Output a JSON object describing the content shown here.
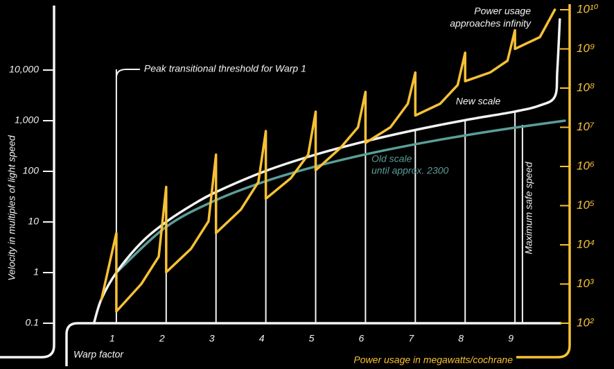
{
  "chart_data": {
    "type": "line",
    "y_label": "Velocity in multiples of light speed",
    "x_label": "Warp factor",
    "y2_label": "Power usage in megawatts/cochrane",
    "log_y": true,
    "log_y2": true,
    "xlim": [
      0,
      10
    ],
    "xticks": [
      1,
      2,
      3,
      4,
      5,
      6,
      7,
      8,
      9
    ],
    "ylim": [
      0.1,
      100000
    ],
    "yticks": [
      0.1,
      1,
      10,
      100,
      {
        "value": 1000,
        "label": "1,000"
      },
      {
        "value": 10000,
        "label": "10,000"
      }
    ],
    "y2lim": [
      100,
      10000000000
    ],
    "y2ticks": [
      {
        "value": 100,
        "label": "10²"
      },
      {
        "value": 1000,
        "label": "10³"
      },
      {
        "value": 10000,
        "label": "10⁴"
      },
      {
        "value": 100000,
        "label": "10⁵"
      },
      {
        "value": 1000000,
        "label": "10⁶"
      },
      {
        "value": 10000000,
        "label": "10⁷"
      },
      {
        "value": 100000000,
        "label": "10⁸"
      },
      {
        "value": 1000000000,
        "label": "10⁹"
      },
      {
        "value": 10000000000,
        "label": "10¹⁰"
      }
    ],
    "series": [
      {
        "name": "New scale",
        "color": "#f4f4f4",
        "x": [
          0.55,
          0.7,
          1,
          1.5,
          2,
          2.5,
          3,
          4,
          5,
          6,
          7,
          8,
          9,
          9.5,
          9.8,
          9.85,
          9.9
        ],
        "values": [
          0.1,
          0.3,
          1,
          3.9,
          10,
          21,
          39,
          102,
          214,
          392,
          656,
          1024,
          1516,
          2000,
          3000,
          10000,
          100000
        ]
      },
      {
        "name": "Old scale",
        "note": "until approx. 2300",
        "color": "#5a9e98",
        "x": [
          1,
          2,
          3,
          4,
          5,
          6,
          7,
          8,
          9,
          10
        ],
        "values": [
          1,
          8,
          27,
          64,
          125,
          216,
          343,
          512,
          729,
          1000
        ]
      },
      {
        "axis": "y2",
        "color": "#f7c136",
        "x": [
          0.7,
          1,
          1,
          1.5,
          1.85,
          2,
          2,
          2.5,
          2.85,
          3,
          3,
          3.5,
          3.85,
          4,
          4,
          4.5,
          4.85,
          5,
          5,
          5.5,
          5.85,
          6,
          6,
          6.5,
          6.85,
          7,
          7,
          7.5,
          7.85,
          8,
          8,
          8.5,
          8.85,
          9,
          9,
          9.5,
          9.8
        ],
        "values": [
          400,
          20000,
          200,
          1000,
          5000,
          300000,
          2000,
          8000,
          40000,
          2000000,
          20000,
          80000,
          400000,
          8000000,
          150000,
          500000,
          2000000,
          25000000,
          800000,
          3000000,
          10000000,
          80000000,
          4000000,
          10000000,
          40000000,
          250000000,
          20000000,
          40000000,
          120000000,
          800000000,
          150000000,
          250000000,
          500000000,
          3000000000,
          1000000000,
          2000000000,
          10000000000
        ]
      }
    ],
    "annotations": {
      "threshold": "Peak transitional threshold for Warp 1",
      "infinity": [
        "Power usage",
        "approaches infinity"
      ],
      "safe_speed": "Maximum safe speed"
    }
  }
}
